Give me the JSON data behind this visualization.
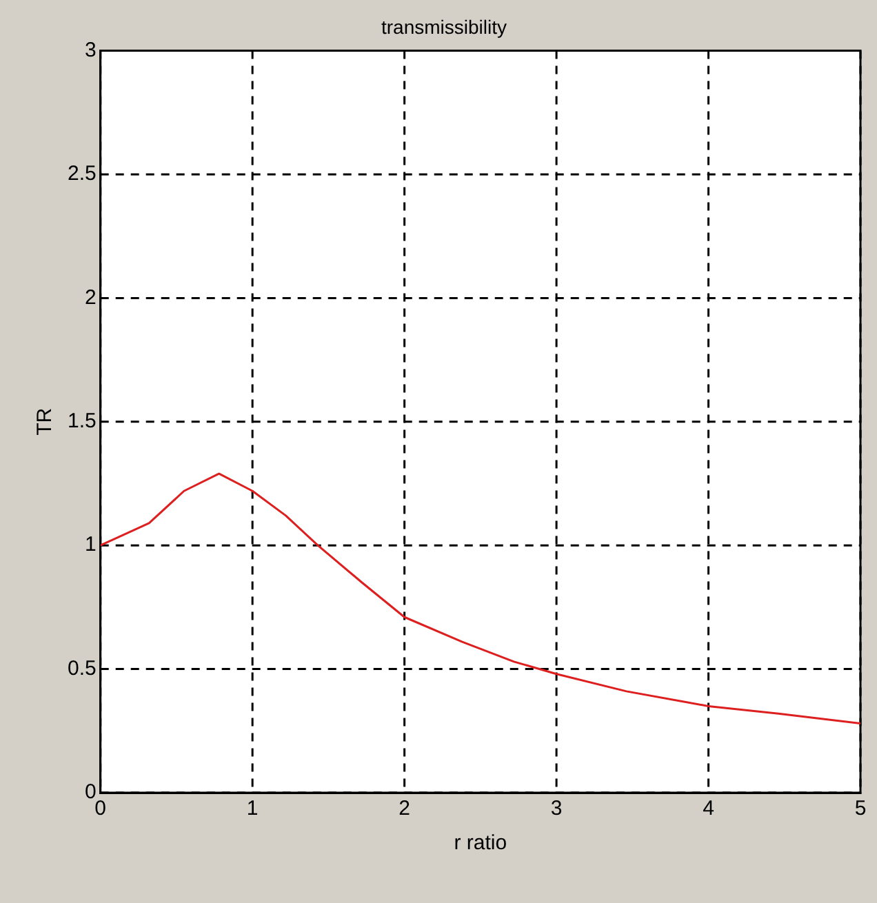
{
  "chart_data": {
    "type": "line",
    "title": "transmissibility",
    "xlabel": "r ratio",
    "ylabel": "TR",
    "series": [
      {
        "color": "#dd1f1f",
        "x": [
          0,
          0.32,
          0.55,
          0.78,
          1,
          1.22,
          1.43,
          1.72,
          2,
          2.38,
          2.72,
          3,
          3.46,
          4,
          4.46,
          5
        ],
        "values": [
          1.0,
          1.09,
          1.22,
          1.29,
          1.22,
          1.12,
          1.0,
          0.85,
          0.71,
          0.61,
          0.53,
          0.48,
          0.41,
          0.35,
          0.32,
          0.28
        ]
      }
    ],
    "xlim": [
      0,
      5
    ],
    "xticks": [
      0,
      1,
      2,
      3,
      4,
      5
    ],
    "ylim": [
      0,
      3
    ],
    "yticks": [
      0,
      0.5,
      1,
      1.5,
      2,
      2.5,
      3
    ],
    "grid": true,
    "legend": false,
    "marker": "none",
    "line_style": "solid"
  }
}
